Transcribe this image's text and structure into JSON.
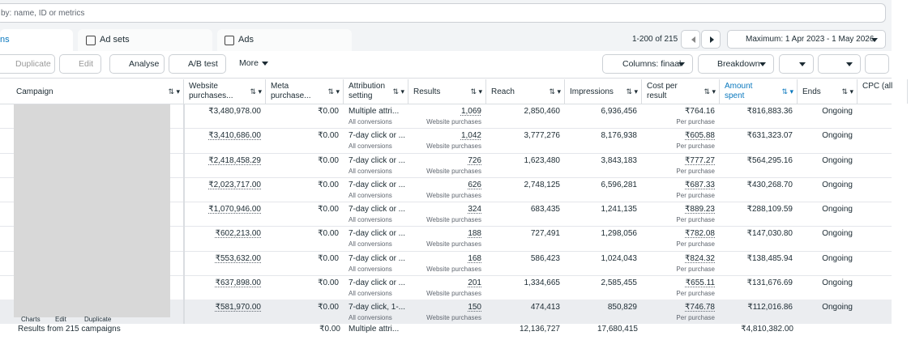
{
  "search_placeholder": "by: name, ID or metrics",
  "tabs": [
    "ns",
    "Ad sets",
    "Ads"
  ],
  "pagination": "1-200 of 215",
  "date_range": "Maximum: 1 Apr 2023 - 1 May 2026",
  "toolbar": {
    "duplicate": "Duplicate",
    "edit": "Edit",
    "analyse": "Analyse",
    "ab_test": "A/B test",
    "more": "More",
    "columns": "Columns: finaal",
    "breakdown": "Breakdown"
  },
  "table": {
    "headers": [
      "Campaign",
      "Website purchases...",
      "Meta purchase...",
      "Attribution setting",
      "Results",
      "Reach",
      "Impressions",
      "Cost per result",
      "Amount spent",
      "Ends",
      "CPC (all"
    ],
    "rows": [
      [
        "₹3,480,978.00",
        "₹0.00",
        "Multiple attri...",
        "All conversions",
        "1,069",
        "Website purchases",
        "2,850,460",
        "6,936,456",
        "₹764.16",
        "Per purchase",
        "₹816,883.36",
        "Ongoing"
      ],
      [
        "₹3,410,686.00",
        "₹0.00",
        "7-day click or ...",
        "All conversions",
        "1,042",
        "Website purchases",
        "3,777,276",
        "8,176,938",
        "₹605.88",
        "Per purchase",
        "₹631,323.07",
        "Ongoing"
      ],
      [
        "₹2,418,458.29",
        "₹0.00",
        "7-day click or ...",
        "All conversions",
        "726",
        "Website purchases",
        "1,623,480",
        "3,843,183",
        "₹777.27",
        "Per purchase",
        "₹564,295.16",
        "Ongoing"
      ],
      [
        "₹2,023,717.00",
        "₹0.00",
        "7-day click or ...",
        "All conversions",
        "626",
        "Website purchases",
        "2,748,125",
        "6,596,281",
        "₹687.33",
        "Per purchase",
        "₹430,268.70",
        "Ongoing"
      ],
      [
        "₹1,070,946.00",
        "₹0.00",
        "7-day click or ...",
        "All conversions",
        "324",
        "Website purchases",
        "683,435",
        "1,241,135",
        "₹889.23",
        "Per purchase",
        "₹288,109.59",
        "Ongoing"
      ],
      [
        "₹602,213.00",
        "₹0.00",
        "7-day click or ...",
        "All conversions",
        "188",
        "Website purchases",
        "727,491",
        "1,298,056",
        "₹782.08",
        "Per purchase",
        "₹147,030.80",
        "Ongoing"
      ],
      [
        "₹553,632.00",
        "₹0.00",
        "7-day click or ...",
        "All conversions",
        "168",
        "Website purchases",
        "586,423",
        "1,024,043",
        "₹824.32",
        "Per purchase",
        "₹138,485.94",
        "Ongoing"
      ],
      [
        "₹637,898.00",
        "₹0.00",
        "7-day click or ...",
        "All conversions",
        "201",
        "Website purchases",
        "1,334,665",
        "2,585,455",
        "₹655.11",
        "Per purchase",
        "₹131,676.69",
        "Ongoing"
      ],
      [
        "₹581,970.00",
        "₹0.00",
        "7-day click, 1-...",
        "All conversions",
        "150",
        "Website purchases",
        "474,413",
        "850,829",
        "₹746.78",
        "Per purchase",
        "₹112,016.86",
        "Ongoing"
      ]
    ],
    "row_actions": [
      "Charts",
      "Edit",
      "Duplicate"
    ],
    "footer": {
      "label": "Results from 215 campaigns",
      "meta": "₹0.00",
      "attribution": "Multiple attri...",
      "reach": "12,136,727",
      "impressions": "17,680,415",
      "amount": "₹4,810,382.00"
    }
  }
}
